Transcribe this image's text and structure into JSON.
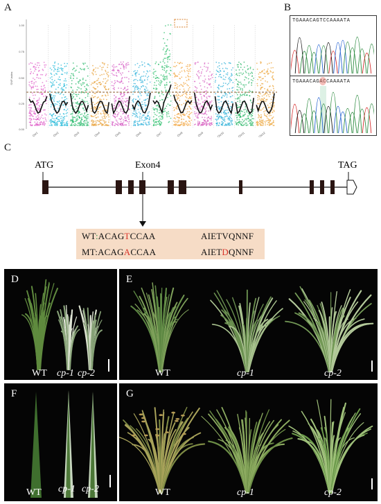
{
  "panels": {
    "a": "A",
    "b": "B",
    "c": "C",
    "d": "D",
    "e": "E",
    "f": "F",
    "g": "G"
  },
  "panel_a": {
    "ylabel": "SNP-index",
    "yticks": [
      "1.00",
      "0.75",
      "0.50",
      "0.25",
      "0.00"
    ],
    "chromosomes": [
      "Chr1",
      "Chr2",
      "Chr3",
      "Chr4",
      "Chr5",
      "Chr6",
      "Chr7",
      "Chr8",
      "Chr9",
      "Chr10",
      "Chr11",
      "Chr12"
    ],
    "colors": [
      "#e062c9",
      "#22b8d8",
      "#25b86a",
      "#e8a33d",
      "#d65ec4",
      "#3bb6dc",
      "#2fbf6d",
      "#f2a640",
      "#d865c3",
      "#31b2d8",
      "#2eb769",
      "#eca63c"
    ],
    "threshold": 0.33,
    "highlight_color": "#d9822b"
  },
  "panel_b": {
    "wt_seq": "TGAAACAGTCCAAAATA",
    "mt_seq_pre": "TGAAACAGA",
    "mt_seq_hl": "",
    "mt_seq_post": "CCAAAATA"
  },
  "panel_c": {
    "atg": "ATG",
    "exon4": "Exon4",
    "tag": "TAG",
    "wt_label": "WT",
    "wt_sep": ":",
    "wt_pre": "ACAG",
    "wt_mut": "T",
    "wt_post": "CCAA",
    "wt_prot_pre": "AIET",
    "wt_prot_mut": "V",
    "wt_prot_post": "QNNF",
    "mt_label": "MT",
    "mt_sep": ":",
    "mt_pre": "ACAG",
    "mt_mut": "A",
    "mt_post": "CCAA",
    "mt_prot_pre": "AIET",
    "mt_prot_mut": "D",
    "mt_prot_post": "QNNF"
  },
  "photos": {
    "d": {
      "wt": "WT",
      "cp1": "cp-1",
      "cp2": "cp-2"
    },
    "e": {
      "wt": "WT",
      "cp1": "cp-1",
      "cp2": "cp-2"
    },
    "f": {
      "wt": "WT",
      "cp1": "cp-1",
      "cp2": "cp-2"
    },
    "g": {
      "wt": "WT",
      "cp1": "cp-1",
      "cp2": "cp-2"
    }
  }
}
